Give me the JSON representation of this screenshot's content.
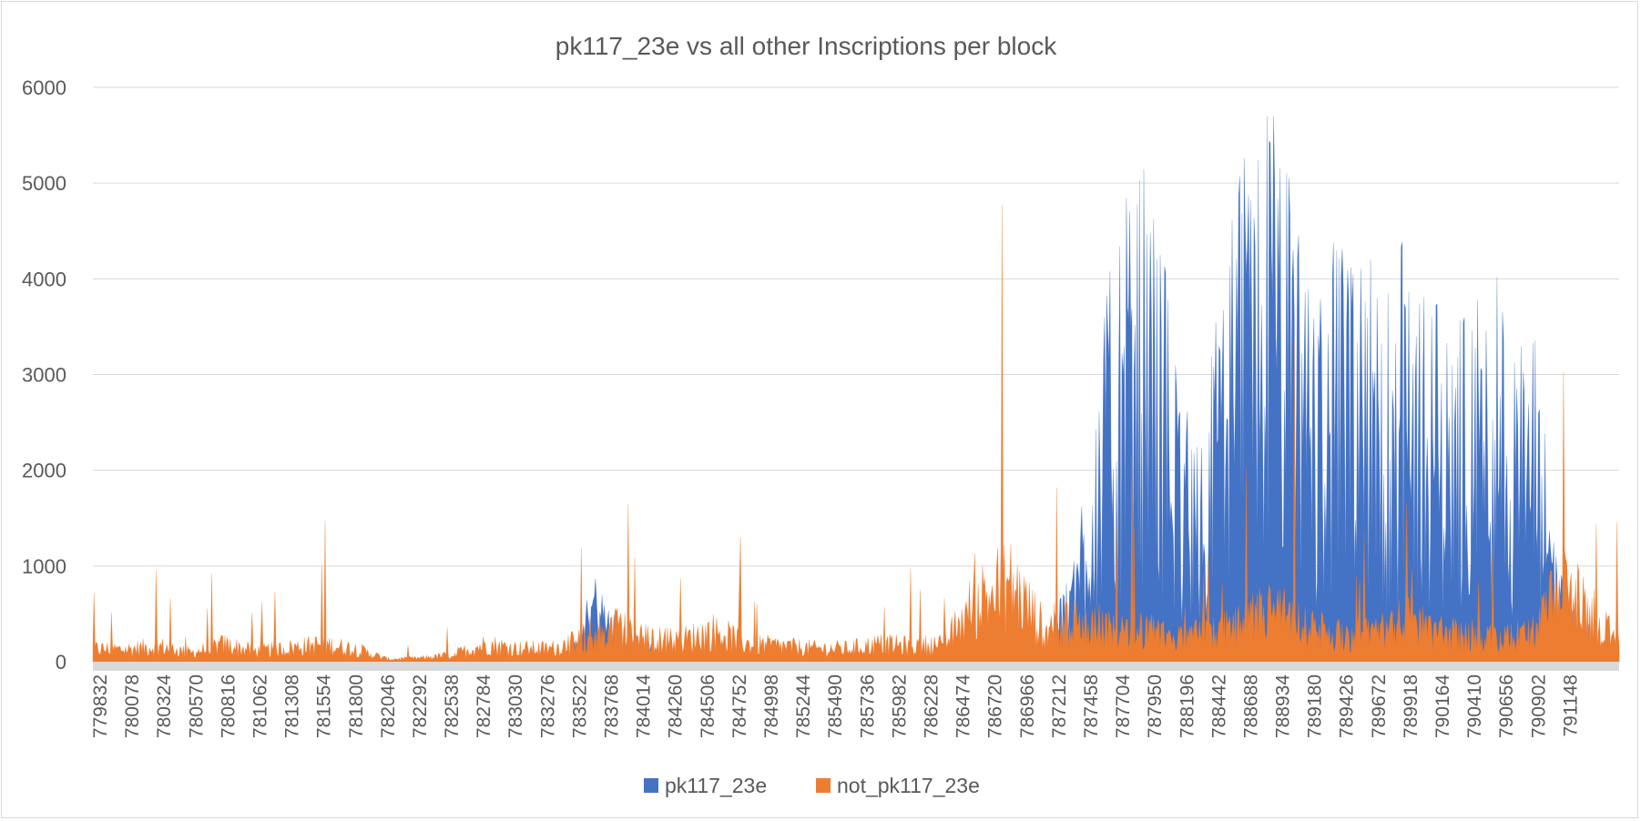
{
  "chart_data": {
    "type": "area",
    "title": "pk117_23e vs all other Inscriptions per block",
    "xlabel": "",
    "ylabel": "",
    "ylim": [
      0,
      6000
    ],
    "yticks": [
      0,
      1000,
      2000,
      3000,
      4000,
      5000,
      6000
    ],
    "grid": true,
    "legend": "bottom",
    "x_range": [
      779832,
      791300
    ],
    "x_tick_labels": [
      "779832",
      "780078",
      "780324",
      "780570",
      "780816",
      "781062",
      "781308",
      "781554",
      "781800",
      "782046",
      "782292",
      "782538",
      "782784",
      "783030",
      "783276",
      "783522",
      "783768",
      "784014",
      "784260",
      "784506",
      "784752",
      "784998",
      "785244",
      "785490",
      "785736",
      "785982",
      "786228",
      "786474",
      "786720",
      "786966",
      "787212",
      "787458",
      "787704",
      "787950",
      "788196",
      "788442",
      "788688",
      "788934",
      "789180",
      "789426",
      "789672",
      "789918",
      "790164",
      "790410",
      "790656",
      "790902",
      "791148"
    ],
    "colors": {
      "pk117_23e": "#4472c4",
      "not_pk117_23e": "#ed7d31",
      "grid": "#d9d9d9",
      "baseline": "#d9d9d9"
    },
    "series": [
      {
        "name": "pk117_23e",
        "color": "#4472c4",
        "x": [
          779832,
          782046,
          783400,
          783600,
          783768,
          784200,
          786228,
          786966,
          787212,
          787458,
          787580,
          787704,
          787830,
          787950,
          788100,
          788196,
          788320,
          788442,
          788560,
          788688,
          788800,
          788934,
          789050,
          789180,
          789300,
          789426,
          789550,
          789672,
          789800,
          789918,
          790040,
          790164,
          790290,
          790410,
          790530,
          790656,
          790780,
          790902,
          791148,
          791300
        ],
        "values": [
          0,
          0,
          0,
          600,
          300,
          0,
          0,
          0,
          800,
          2500,
          3000,
          3300,
          3100,
          2200,
          1500,
          1800,
          2600,
          3200,
          3500,
          3900,
          3300,
          2700,
          2500,
          2900,
          2600,
          2700,
          2500,
          2800,
          2600,
          2400,
          2200,
          2500,
          2300,
          2700,
          2100,
          2200,
          1300,
          400,
          200,
          100
        ]
      },
      {
        "name": "not_pk117_23e",
        "color": "#ed7d31",
        "x": [
          779832,
          780078,
          780324,
          780570,
          780816,
          781062,
          781308,
          781554,
          781800,
          782046,
          782292,
          782538,
          782784,
          783030,
          783276,
          783522,
          783768,
          784014,
          784260,
          784506,
          784752,
          784998,
          785244,
          785490,
          785736,
          785982,
          786228,
          786474,
          786720,
          786966,
          787212,
          787458,
          787704,
          787950,
          788196,
          788442,
          788688,
          788934,
          789180,
          789426,
          789672,
          789918,
          790164,
          790410,
          790656,
          790902,
          791148,
          791300
        ],
        "values": [
          150,
          140,
          180,
          100,
          200,
          120,
          160,
          200,
          150,
          30,
          40,
          80,
          200,
          150,
          150,
          250,
          400,
          250,
          250,
          350,
          200,
          180,
          150,
          150,
          200,
          180,
          200,
          700,
          900,
          400,
          450,
          400,
          350,
          300,
          300,
          400,
          600,
          400,
          300,
          350,
          500,
          350,
          300,
          250,
          350,
          900,
          350,
          300
        ]
      }
    ]
  }
}
